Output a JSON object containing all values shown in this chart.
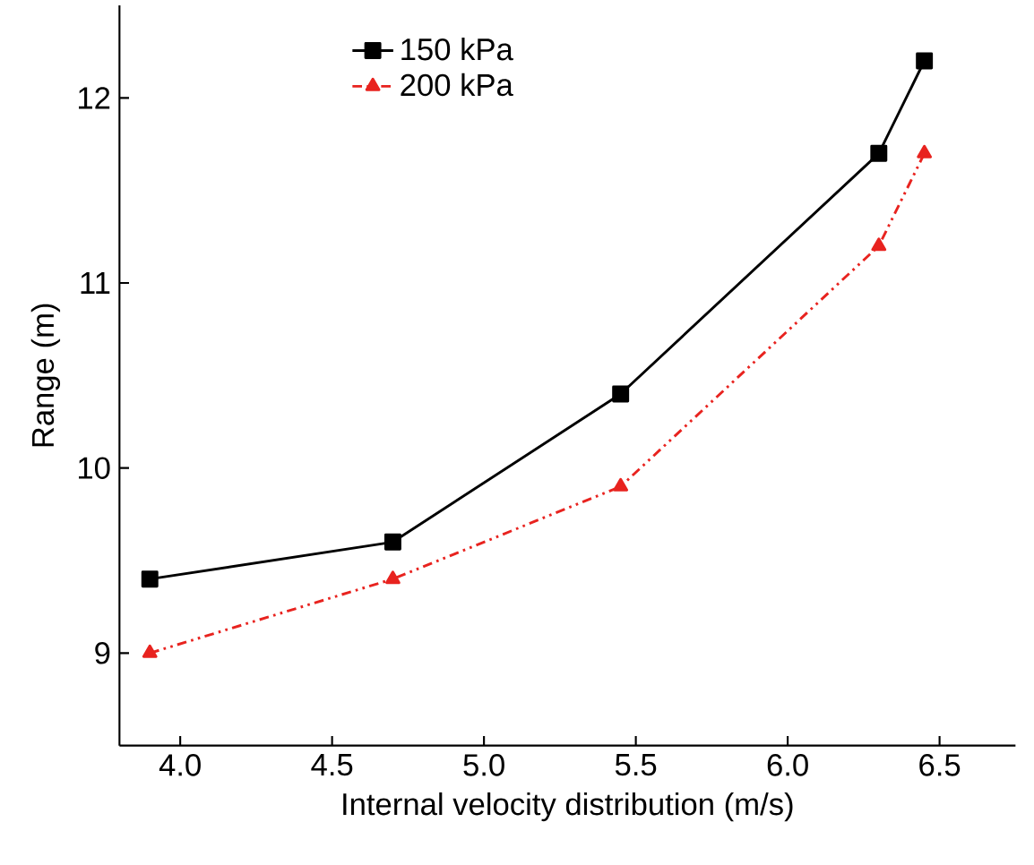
{
  "chart_data": {
    "type": "line",
    "xlabel": "Internal velocity distribution (m/s)",
    "ylabel": "Range (m)",
    "x": [
      3.9,
      4.7,
      5.45,
      6.3,
      6.45
    ],
    "series": [
      {
        "name": "150 kPa",
        "color": "#000000",
        "marker": "square",
        "line_style": "solid",
        "values": [
          9.4,
          9.6,
          10.4,
          11.7,
          12.2
        ]
      },
      {
        "name": "200 kPa",
        "color": "#e8231f",
        "marker": "triangle",
        "line_style": "dashed",
        "values": [
          9.0,
          9.4,
          9.9,
          11.2,
          11.7
        ]
      }
    ],
    "xlim": [
      3.8,
      6.75
    ],
    "ylim": [
      8.5,
      12.5
    ],
    "xticks": [
      {
        "value": 4.0,
        "label": "4.0"
      },
      {
        "value": 4.5,
        "label": "4.5"
      },
      {
        "value": 5.0,
        "label": "5.0"
      },
      {
        "value": 5.5,
        "label": "5.5"
      },
      {
        "value": 6.0,
        "label": "6.0"
      },
      {
        "value": 6.5,
        "label": "6.5"
      }
    ],
    "yticks": [
      9,
      10,
      11,
      12
    ],
    "legend": "top left",
    "grid": false
  }
}
